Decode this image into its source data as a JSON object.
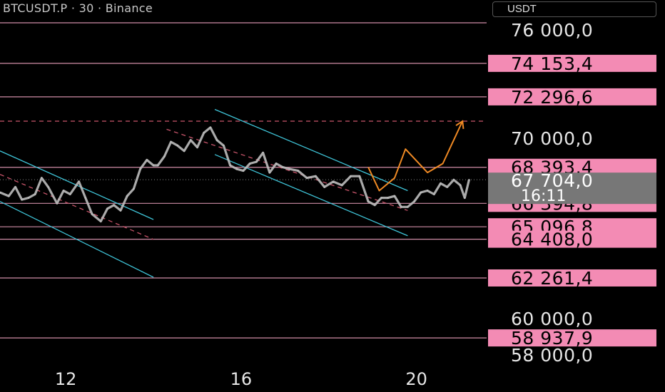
{
  "header": {
    "title": "BTCUSDT.P · 30 · Binance",
    "currency": "USDT"
  },
  "colors": {
    "background": "#000000",
    "level_line": "#f4a6c4",
    "level_badge": "#f38bb4",
    "channel": "#3fc4d8",
    "projection": "#f08a24",
    "midline": "#c9556b",
    "price_series": "#bdbdbd",
    "current_badge": "#777777"
  },
  "chart_data": {
    "type": "line",
    "symbol": "BTCUSDT.P",
    "interval": "30",
    "exchange": "Binance",
    "yaxis": {
      "ylim": [
        57600,
        76400
      ],
      "ticks": [
        58000,
        60000,
        70000,
        76000
      ],
      "tick_labels": [
        "58 000,0",
        "60 000,0",
        "70 000,0",
        "76 000,0"
      ]
    },
    "xaxis": {
      "xlim": [
        10.5,
        21.6
      ],
      "ticks": [
        12,
        16,
        20
      ],
      "tick_labels": [
        "12",
        "16",
        "20"
      ]
    },
    "horizontal_levels": [
      {
        "value": 76400,
        "label": ""
      },
      {
        "value": 74153.4,
        "label": "74 153,4"
      },
      {
        "value": 72296.6,
        "label": "72 296,6"
      },
      {
        "value": 68393.4,
        "label": "68 393,4"
      },
      {
        "value": 66394.8,
        "label": "66 394,8"
      },
      {
        "value": 65096.8,
        "label": "65 096,8"
      },
      {
        "value": 64408.0,
        "label": "64 408,0"
      },
      {
        "value": 62261.4,
        "label": "62 261,4"
      },
      {
        "value": 58937.9,
        "label": "58 937,9"
      }
    ],
    "target_level": 70950,
    "current_price": {
      "value": 67704.0,
      "label": "67 704,0",
      "countdown": "16:11"
    },
    "price_series": {
      "x": [
        10.5,
        10.7,
        10.85,
        11.0,
        11.15,
        11.3,
        11.45,
        11.6,
        11.8,
        11.95,
        12.1,
        12.3,
        12.45,
        12.6,
        12.8,
        12.95,
        13.1,
        13.25,
        13.4,
        13.55,
        13.7,
        13.85,
        14.0,
        14.1,
        14.25,
        14.4,
        14.55,
        14.7,
        14.85,
        15.0,
        15.15,
        15.3,
        15.45,
        15.6,
        15.75,
        15.9,
        16.05,
        16.2,
        16.35,
        16.5,
        16.65,
        16.8,
        16.95,
        17.1,
        17.3,
        17.5,
        17.7,
        17.9,
        18.1,
        18.3,
        18.5,
        18.7,
        18.9,
        19.05,
        19.2,
        19.35,
        19.5,
        19.65,
        19.8,
        19.95,
        20.1,
        20.25,
        20.4,
        20.55,
        20.7,
        20.85,
        21.0,
        21.1,
        21.2
      ],
      "y": [
        67000,
        66800,
        67300,
        66600,
        66700,
        66900,
        67800,
        67300,
        66400,
        67100,
        66900,
        67600,
        66700,
        65800,
        65400,
        66100,
        66300,
        66000,
        66800,
        67200,
        68300,
        68800,
        68500,
        68500,
        69000,
        69800,
        69600,
        69300,
        69900,
        69500,
        70300,
        70600,
        69900,
        69600,
        68500,
        68300,
        68200,
        68600,
        68700,
        69200,
        68100,
        68600,
        68400,
        68300,
        68200,
        67800,
        67900,
        67300,
        67600,
        67400,
        67900,
        67900,
        66500,
        66300,
        66700,
        66700,
        66800,
        66200,
        66200,
        66500,
        67000,
        67100,
        66900,
        67500,
        67300,
        67700,
        67400,
        66700,
        67700
      ]
    },
    "trend_channels": [
      {
        "upper": [
          [
            15.4,
            71600
          ],
          [
            19.8,
            67100
          ]
        ],
        "lower": [
          [
            15.4,
            69100
          ],
          [
            19.8,
            64600
          ]
        ]
      },
      {
        "upper": [
          [
            10.5,
            69300
          ],
          [
            14.0,
            65500
          ]
        ],
        "lower": [
          [
            10.5,
            66500
          ],
          [
            14.0,
            62300
          ]
        ]
      }
    ],
    "dashed_midlines": [
      [
        [
          14.3,
          70500
        ],
        [
          19.8,
          66000
        ]
      ],
      [
        [
          10.5,
          68000
        ],
        [
          14.0,
          64400
        ]
      ]
    ],
    "projection_path": {
      "x": [
        18.9,
        19.15,
        19.5,
        19.75,
        20.25,
        20.6,
        21.05
      ],
      "y": [
        68400,
        67100,
        67800,
        69400,
        68100,
        68600,
        70950
      ]
    }
  }
}
